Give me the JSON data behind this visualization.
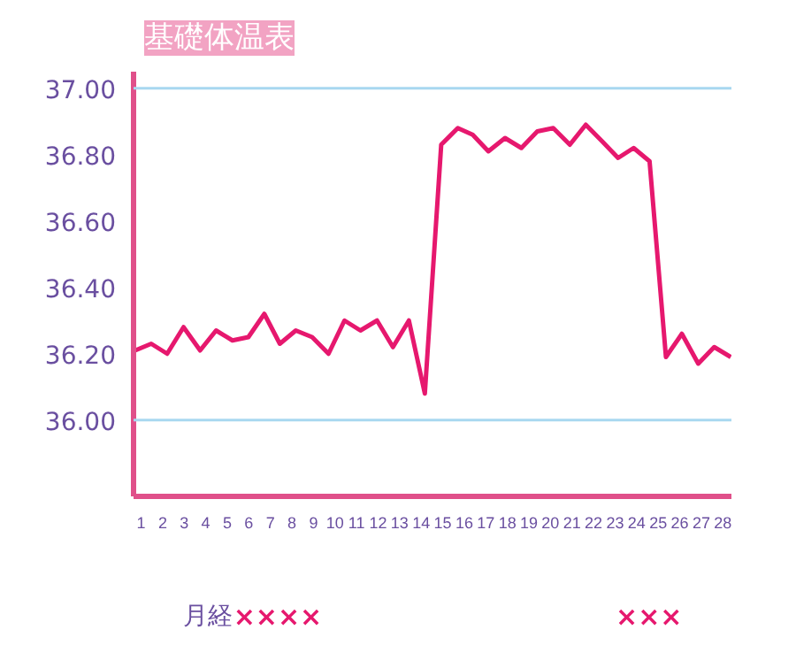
{
  "chart_data": {
    "type": "line",
    "title": "基礎体温表",
    "x": [
      0.73,
      1.47,
      2.21,
      2.97,
      3.74,
      4.48,
      5.24,
      5.98,
      6.72,
      7.44,
      8.18,
      8.94,
      9.7,
      10.44,
      11.18,
      11.95,
      12.69,
      13.43,
      14.17,
      14.93,
      15.7,
      16.39,
      17.12,
      17.89,
      18.65,
      19.39,
      20.13,
      20.9,
      21.64,
      22.4,
      23.14,
      23.86,
      24.6,
      25.36,
      26.1,
      26.86,
      27.6,
      28.37
    ],
    "series": [
      {
        "color": "#e6186e",
        "values": [
          36.21,
          36.23,
          36.2,
          36.28,
          36.21,
          36.27,
          36.24,
          36.25,
          36.32,
          36.23,
          36.27,
          36.25,
          36.2,
          36.3,
          36.27,
          36.3,
          36.22,
          36.3,
          36.08,
          36.83,
          36.88,
          36.86,
          36.81,
          36.85,
          36.82,
          36.87,
          36.88,
          36.83,
          36.89,
          36.84,
          36.79,
          36.82,
          36.78,
          36.19,
          36.26,
          36.17,
          36.22,
          36.19
        ]
      }
    ],
    "xlim": [
      0.65,
      28.4
    ],
    "xticks": [
      1,
      2,
      3,
      4,
      5,
      6,
      7,
      8,
      9,
      10,
      11,
      12,
      13,
      14,
      15,
      16,
      17,
      18,
      19,
      20,
      21,
      22,
      23,
      24,
      25,
      26,
      27,
      28
    ],
    "ylim": [
      35.77,
      37.05
    ],
    "yticks": [
      {
        "value": 36.0,
        "label": "36.00"
      },
      {
        "value": 36.2,
        "label": "36.20"
      },
      {
        "value": 36.4,
        "label": "36.40"
      },
      {
        "value": 36.6,
        "label": "36.60"
      },
      {
        "value": 36.8,
        "label": "36.80"
      },
      {
        "value": 37.0,
        "label": "37.00"
      }
    ],
    "ref_lines": [
      {
        "axis": "y",
        "value": 36.0,
        "color": "#a8d8f0"
      },
      {
        "axis": "y",
        "value": 37.0,
        "color": "#a8d8f0"
      }
    ],
    "grid": false,
    "marker": "none",
    "line_style": "solid",
    "annotations": [
      "月経",
      "××××",
      "×××"
    ]
  }
}
